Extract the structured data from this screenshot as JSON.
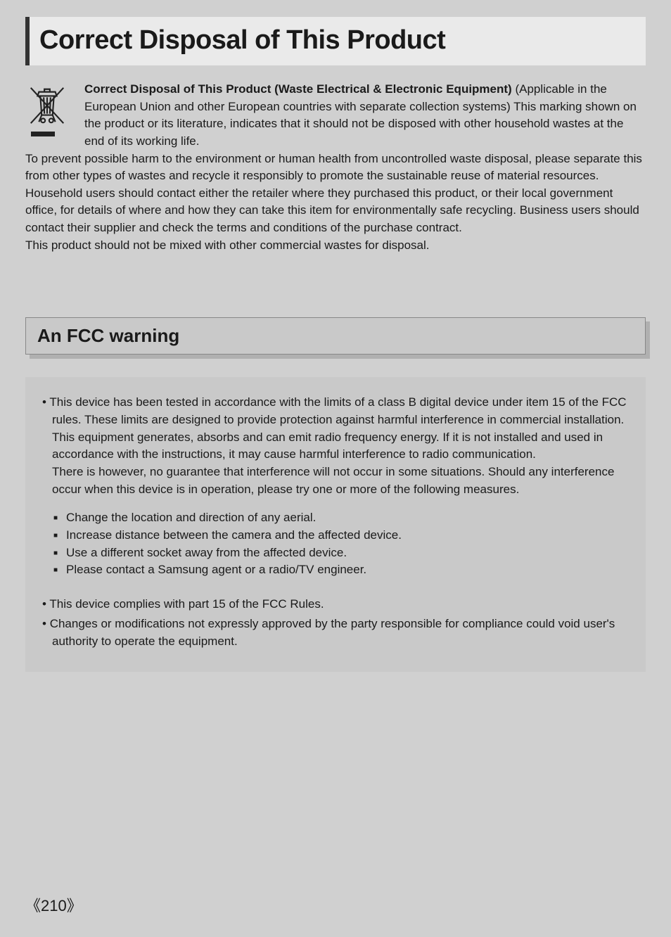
{
  "title": "Correct Disposal of This Product",
  "disposal": {
    "heading_bold": "Correct Disposal of This Product (Waste Electrical & Electronic Equipment)",
    "body": "(Applicable in the European Union and other European countries with separate collection systems) This marking shown on the product or its literature, indicates that it should not be disposed with other household wastes at the end of its working life.\nTo prevent possible harm to the environment or human health from uncontrolled waste disposal, please separate this from other types of wastes and recycle it responsibly to promote the sustainable reuse of material resources. Household users should contact either the retailer where they purchased this product, or their local government office, for details of where and how they can take this item for environmentally safe recycling. Business users should contact their supplier and check the terms and conditions of the purchase contract.\nThis product should not be mixed with other commercial wastes for disposal."
  },
  "subheading": "An FCC warning",
  "fcc": {
    "para1": "This device has been tested in accordance with the limits of a class B digital device under item 15 of the FCC rules. These limits are designed to provide protection against harmful interference in commercial installation. This equipment generates, absorbs and can emit radio frequency energy. If it is not installed and used in accordance with the instructions, it may cause harmful interference to radio communication.",
    "para2": "There is however, no guarantee that interference will not occur in some situations. Should any interference occur when this device is in operation, please try one or more of the following measures.",
    "bullets": [
      "Change the location and direction of any aerial.",
      "Increase distance between the camera and the affected device.",
      "Use a different socket away from the affected device.",
      "Please contact a Samsung agent or a radio/TV engineer."
    ],
    "tail1": "This device complies with part 15 of the FCC Rules.",
    "tail2": "Changes or modifications not expressly approved by the party responsible for compliance could void user's authority to operate the equipment."
  },
  "page_number": "《210》"
}
